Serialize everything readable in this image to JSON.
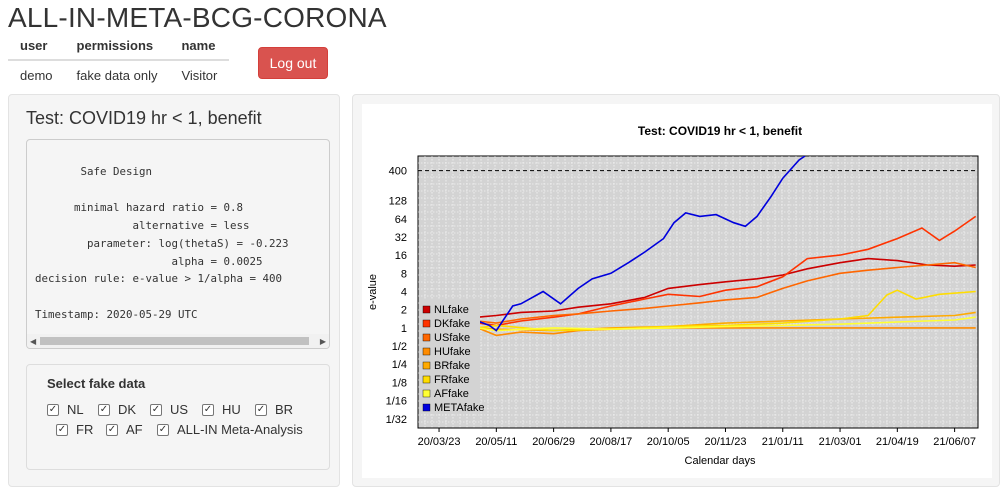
{
  "app": {
    "title": "ALL-IN-META-BCG-CORONA"
  },
  "user_table": {
    "headers": [
      "user",
      "permissions",
      "name"
    ],
    "row": [
      "demo",
      "fake data only",
      "Visitor"
    ]
  },
  "logout_label": "Log out",
  "sidebar": {
    "panel_title": "Test: COVID19 hr < 1, benefit",
    "design_text": "       Safe Design\n\n      minimal hazard ratio = 0.8\n               alternative = less\n        parameter: log(thetaS) = -0.223\n                     alpha = 0.0025\ndecision rule: e-value > 1/alpha = 400\n\nTimestamp: 2020-05-29 UTC",
    "select_label": "Select fake data",
    "checkboxes": [
      {
        "label": "NL",
        "checked": true
      },
      {
        "label": "DK",
        "checked": true
      },
      {
        "label": "US",
        "checked": true
      },
      {
        "label": "HU",
        "checked": true
      },
      {
        "label": "BR",
        "checked": true
      },
      {
        "label": "FR",
        "checked": true
      },
      {
        "label": "AF",
        "checked": true
      },
      {
        "label": "ALL-IN Meta-Analysis",
        "checked": true
      }
    ]
  },
  "chart_data": {
    "type": "line",
    "title": "Test: COVID19 hr < 1, benefit",
    "xlabel": "Calendar days",
    "ylabel": "e-value",
    "y_scale": "log2",
    "ylim": [
      0.022,
      700
    ],
    "x_ticks": [
      "20/03/23",
      "20/05/11",
      "20/06/29",
      "20/08/17",
      "20/10/05",
      "20/11/23",
      "21/01/11",
      "21/03/01",
      "21/04/19",
      "21/06/07"
    ],
    "y_ticks": [
      "1/32",
      "1/16",
      "1/8",
      "1/4",
      "1/2",
      "1",
      "2",
      "4",
      "8",
      "16",
      "32",
      "64",
      "128",
      "400"
    ],
    "threshold": 400,
    "grid": true,
    "legend_position": "left-bottom",
    "series": [
      {
        "name": "NLfake",
        "color": "#cc0000",
        "points": [
          [
            "20/04/25",
            1.5
          ],
          [
            "20/05/11",
            1.6
          ],
          [
            "20/06/01",
            1.8
          ],
          [
            "20/06/29",
            1.9
          ],
          [
            "20/07/20",
            2.2
          ],
          [
            "20/08/17",
            2.5
          ],
          [
            "20/09/15",
            3.2
          ],
          [
            "20/10/05",
            4.5
          ],
          [
            "20/11/01",
            5.2
          ],
          [
            "20/11/23",
            5.8
          ],
          [
            "20/12/20",
            6.5
          ],
          [
            "21/01/11",
            7.5
          ],
          [
            "21/02/01",
            9.5
          ],
          [
            "21/03/01",
            12
          ],
          [
            "21/03/25",
            14
          ],
          [
            "21/04/19",
            13
          ],
          [
            "21/05/15",
            11
          ],
          [
            "21/06/07",
            10.5
          ],
          [
            "21/06/25",
            11
          ]
        ]
      },
      {
        "name": "DKfake",
        "color": "#ff3300",
        "points": [
          [
            "20/04/25",
            1.2
          ],
          [
            "20/05/11",
            1.1
          ],
          [
            "20/06/01",
            1.3
          ],
          [
            "20/06/29",
            1.5
          ],
          [
            "20/07/20",
            1.7
          ],
          [
            "20/08/17",
            2.3
          ],
          [
            "20/09/15",
            3.0
          ],
          [
            "20/10/05",
            3.6
          ],
          [
            "20/11/01",
            3.3
          ],
          [
            "20/11/23",
            4.2
          ],
          [
            "20/12/20",
            4.8
          ],
          [
            "21/01/11",
            7
          ],
          [
            "21/02/01",
            14
          ],
          [
            "21/03/01",
            16
          ],
          [
            "21/03/25",
            20
          ],
          [
            "21/04/19",
            30
          ],
          [
            "21/05/10",
            45
          ],
          [
            "21/05/25",
            28
          ],
          [
            "21/06/07",
            40
          ],
          [
            "21/06/25",
            70
          ]
        ]
      },
      {
        "name": "USfake",
        "color": "#ff6600",
        "points": [
          [
            "20/04/25",
            1.3
          ],
          [
            "20/05/11",
            1.2
          ],
          [
            "20/06/01",
            1.4
          ],
          [
            "20/06/29",
            1.6
          ],
          [
            "20/07/20",
            1.7
          ],
          [
            "20/08/17",
            1.9
          ],
          [
            "20/09/15",
            2.1
          ],
          [
            "20/10/05",
            2.3
          ],
          [
            "20/11/01",
            2.6
          ],
          [
            "20/11/23",
            2.9
          ],
          [
            "20/12/20",
            3.2
          ],
          [
            "21/01/11",
            4.5
          ],
          [
            "21/02/01",
            6
          ],
          [
            "21/03/01",
            8
          ],
          [
            "21/03/25",
            9
          ],
          [
            "21/04/19",
            10
          ],
          [
            "21/05/15",
            11
          ],
          [
            "21/06/07",
            12
          ],
          [
            "21/06/25",
            10
          ]
        ]
      },
      {
        "name": "HUfake",
        "color": "#ff8c00",
        "points": [
          [
            "20/04/25",
            1.0
          ],
          [
            "20/05/11",
            0.75
          ],
          [
            "20/06/01",
            0.85
          ],
          [
            "20/06/29",
            0.8
          ],
          [
            "20/07/20",
            0.9
          ],
          [
            "20/08/17",
            0.95
          ],
          [
            "20/09/15",
            1.0
          ],
          [
            "20/10/05",
            1.0
          ],
          [
            "20/11/01",
            1.0
          ],
          [
            "20/11/23",
            1.0
          ],
          [
            "20/12/20",
            1.0
          ],
          [
            "21/01/11",
            1.0
          ],
          [
            "21/03/01",
            1.0
          ],
          [
            "21/04/19",
            1.0
          ],
          [
            "21/06/07",
            1.0
          ],
          [
            "21/06/25",
            1.0
          ]
        ]
      },
      {
        "name": "BRfake",
        "color": "#ffaa00",
        "points": [
          [
            "20/04/25",
            1.0
          ],
          [
            "20/05/11",
            0.95
          ],
          [
            "20/06/29",
            0.9
          ],
          [
            "20/08/17",
            1.0
          ],
          [
            "20/10/05",
            1.05
          ],
          [
            "20/11/23",
            1.2
          ],
          [
            "21/01/11",
            1.3
          ],
          [
            "21/03/01",
            1.4
          ],
          [
            "21/04/19",
            1.5
          ],
          [
            "21/06/07",
            1.6
          ],
          [
            "21/06/25",
            1.8
          ]
        ]
      },
      {
        "name": "FRfake",
        "color": "#ffdd00",
        "points": [
          [
            "20/04/25",
            1.0
          ],
          [
            "20/05/11",
            1.1
          ],
          [
            "20/06/29",
            0.9
          ],
          [
            "20/08/17",
            0.95
          ],
          [
            "20/10/05",
            1.05
          ],
          [
            "20/11/23",
            1.1
          ],
          [
            "21/01/11",
            1.2
          ],
          [
            "21/03/01",
            1.4
          ],
          [
            "21/03/25",
            1.6
          ],
          [
            "21/04/10",
            3.5
          ],
          [
            "21/04/19",
            4.2
          ],
          [
            "21/05/05",
            3.0
          ],
          [
            "21/05/25",
            3.6
          ],
          [
            "21/06/25",
            4.0
          ]
        ]
      },
      {
        "name": "AFfake",
        "color": "#ffff33",
        "points": [
          [
            "20/04/25",
            1.0
          ],
          [
            "20/05/11",
            0.9
          ],
          [
            "20/06/29",
            1.0
          ],
          [
            "20/08/17",
            0.95
          ],
          [
            "20/10/05",
            1.0
          ],
          [
            "20/11/23",
            1.05
          ],
          [
            "21/01/11",
            1.1
          ],
          [
            "21/03/01",
            1.15
          ],
          [
            "21/04/19",
            1.25
          ],
          [
            "21/06/07",
            1.35
          ],
          [
            "21/06/25",
            1.5
          ]
        ]
      },
      {
        "name": "METAfake",
        "color": "#0000dd",
        "points": [
          [
            "20/04/25",
            1.3
          ],
          [
            "20/05/05",
            1.1
          ],
          [
            "20/05/11",
            0.9
          ],
          [
            "20/05/25",
            2.3
          ],
          [
            "20/06/01",
            2.5
          ],
          [
            "20/06/20",
            4
          ],
          [
            "20/07/05",
            2.5
          ],
          [
            "20/07/20",
            4.5
          ],
          [
            "20/08/01",
            6.5
          ],
          [
            "20/08/17",
            8
          ],
          [
            "20/09/01",
            12
          ],
          [
            "20/09/15",
            18
          ],
          [
            "20/10/01",
            30
          ],
          [
            "20/10/10",
            55
          ],
          [
            "20/10/20",
            80
          ],
          [
            "20/11/01",
            70
          ],
          [
            "20/11/15",
            75
          ],
          [
            "20/11/30",
            55
          ],
          [
            "20/12/10",
            48
          ],
          [
            "20/12/20",
            70
          ],
          [
            "21/01/01",
            150
          ],
          [
            "21/01/11",
            300
          ],
          [
            "21/01/25",
            600
          ],
          [
            "21/01/30",
            700
          ]
        ]
      }
    ]
  }
}
